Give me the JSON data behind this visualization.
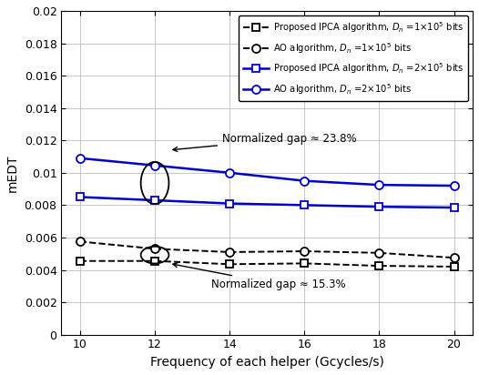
{
  "x": [
    10,
    12,
    14,
    16,
    18,
    20
  ],
  "ipca_d1": [
    0.00455,
    0.00455,
    0.00435,
    0.0044,
    0.00425,
    0.0042
  ],
  "ao_d1": [
    0.00575,
    0.0053,
    0.0051,
    0.00515,
    0.00505,
    0.00475
  ],
  "ipca_d2": [
    0.0085,
    0.0083,
    0.0081,
    0.008,
    0.0079,
    0.00785
  ],
  "ao_d2": [
    0.0109,
    0.01045,
    0.01,
    0.0095,
    0.00925,
    0.0092
  ],
  "color_black": "#000000",
  "color_blue": "#0000cc",
  "xlabel": "Frequency of each helper (Gcycles/s)",
  "ylabel": "mEDT",
  "ylim": [
    0,
    0.02
  ],
  "yticks": [
    0,
    0.002,
    0.004,
    0.006,
    0.008,
    0.01,
    0.012,
    0.014,
    0.016,
    0.018,
    0.02
  ],
  "xticks": [
    10,
    12,
    14,
    16,
    18,
    20
  ],
  "legend_labels": [
    "Proposed IPCA algorithm, $D_n$ =1×10$^5$ bits",
    "AO algorithm, $D_n$ =1×10$^5$ bits",
    "Proposed IPCA algorithm, $D_n$ =2×10$^5$ bits",
    "AO algorithm, $D_n$ =2×10$^5$ bits"
  ],
  "ann1_text": "Normalized gap ≈ 23.8%",
  "ann2_text": "Normalized gap ≈ 15.3%",
  "background_color": "#ffffff",
  "grid_color": "#b0b0b0",
  "figwidth": 5.26,
  "figheight": 4.12,
  "dpi": 100
}
